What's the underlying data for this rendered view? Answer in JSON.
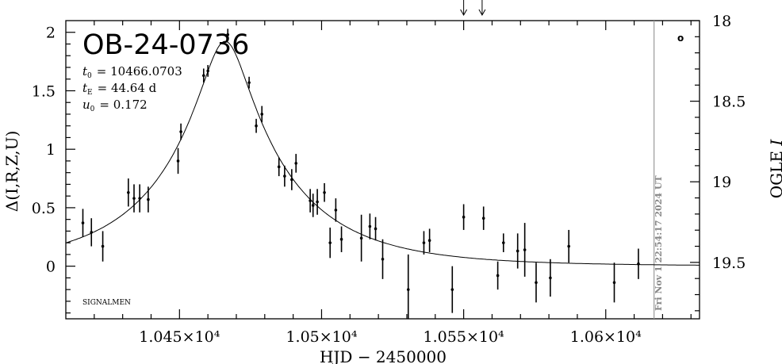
{
  "chart_data": {
    "type": "scatter",
    "title": "OB-24-0736",
    "params": {
      "t0_label": "t",
      "t0_sub": "0",
      "t0_value": "= 10466.0703",
      "tE_label": "t",
      "tE_sub": "E",
      "tE_value": "= 44.64 d",
      "u0_label": "u",
      "u0_sub": "0",
      "u0_value": "= 0.172"
    },
    "xlabel": "HJD − 2450000",
    "ylabel_left": "Δ(I,R,Z,U)",
    "ylabel_right": "OGLE I",
    "ylabel_right_prefix": "OGLE ",
    "ylabel_right_var": "I",
    "footer_tag": "SIGNALMEN",
    "corner_mark": "o",
    "timestamp": "Fri Nov  1 22:54:17 2024 UT",
    "xlim": [
      10410,
      10633
    ],
    "ylim_left": [
      -0.45,
      2.1
    ],
    "ylim_right": [
      18.0,
      19.85
    ],
    "x_ticks": [
      {
        "value": 10450,
        "label": "1.045×10⁴"
      },
      {
        "value": 10500,
        "label": "1.05×10⁴"
      },
      {
        "value": 10550,
        "label": "1.055×10⁴"
      },
      {
        "value": 10600,
        "label": "1.06×10⁴"
      }
    ],
    "y_left_ticks": [
      {
        "value": 0,
        "label": "0"
      },
      {
        "value": 0.5,
        "label": "0.5"
      },
      {
        "value": 1,
        "label": "1"
      },
      {
        "value": 1.5,
        "label": "1.5"
      },
      {
        "value": 2,
        "label": "2"
      }
    ],
    "y_right_ticks": [
      {
        "value": 18,
        "label": "18"
      },
      {
        "value": 18.5,
        "label": "18.5"
      },
      {
        "value": 19,
        "label": "19"
      },
      {
        "value": 19.5,
        "label": "19.5"
      }
    ],
    "now_line_x": 10617,
    "arrow_markers_x": [
      10550,
      10556.5
    ],
    "model": {
      "t0": 10466.07,
      "tE": 44.64,
      "u0": 0.172,
      "fbase_delta": 0.0
    },
    "points": [
      {
        "x": 10416.0,
        "y": 0.37,
        "err": 0.12
      },
      {
        "x": 10419.0,
        "y": 0.29,
        "err": 0.12
      },
      {
        "x": 10423.0,
        "y": 0.17,
        "err": 0.13
      },
      {
        "x": 10432.0,
        "y": 0.63,
        "err": 0.12
      },
      {
        "x": 10434.0,
        "y": 0.58,
        "err": 0.12
      },
      {
        "x": 10436.0,
        "y": 0.58,
        "err": 0.12
      },
      {
        "x": 10439.0,
        "y": 0.57,
        "err": 0.11
      },
      {
        "x": 10449.5,
        "y": 0.9,
        "err": 0.11
      },
      {
        "x": 10450.5,
        "y": 1.15,
        "err": 0.07
      },
      {
        "x": 10458.5,
        "y": 1.63,
        "err": 0.06
      },
      {
        "x": 10460.0,
        "y": 1.67,
        "err": 0.05
      },
      {
        "x": 10467.0,
        "y": 1.98,
        "err": 0.05
      },
      {
        "x": 10474.5,
        "y": 1.57,
        "err": 0.05
      },
      {
        "x": 10477.0,
        "y": 1.2,
        "err": 0.06
      },
      {
        "x": 10479.0,
        "y": 1.3,
        "err": 0.07
      },
      {
        "x": 10485.0,
        "y": 0.85,
        "err": 0.08
      },
      {
        "x": 10487.0,
        "y": 0.77,
        "err": 0.09
      },
      {
        "x": 10489.5,
        "y": 0.74,
        "err": 0.09
      },
      {
        "x": 10491.0,
        "y": 0.88,
        "err": 0.08
      },
      {
        "x": 10496.0,
        "y": 0.56,
        "err": 0.1
      },
      {
        "x": 10497.0,
        "y": 0.52,
        "err": 0.1
      },
      {
        "x": 10498.5,
        "y": 0.55,
        "err": 0.11
      },
      {
        "x": 10501.0,
        "y": 0.63,
        "err": 0.08
      },
      {
        "x": 10503.0,
        "y": 0.2,
        "err": 0.13
      },
      {
        "x": 10505.0,
        "y": 0.48,
        "err": 0.1
      },
      {
        "x": 10507.0,
        "y": 0.23,
        "err": 0.11
      },
      {
        "x": 10514.0,
        "y": 0.24,
        "err": 0.2
      },
      {
        "x": 10517.0,
        "y": 0.34,
        "err": 0.11
      },
      {
        "x": 10519.0,
        "y": 0.32,
        "err": 0.1
      },
      {
        "x": 10521.5,
        "y": 0.06,
        "err": 0.17
      },
      {
        "x": 10530.5,
        "y": -0.2,
        "err": 0.3
      },
      {
        "x": 10536.0,
        "y": 0.2,
        "err": 0.1
      },
      {
        "x": 10538.0,
        "y": 0.22,
        "err": 0.1
      },
      {
        "x": 10546.0,
        "y": -0.2,
        "err": 0.2
      },
      {
        "x": 10550.0,
        "y": 0.42,
        "err": 0.11
      },
      {
        "x": 10557.0,
        "y": 0.41,
        "err": 0.1
      },
      {
        "x": 10562.0,
        "y": -0.08,
        "err": 0.12
      },
      {
        "x": 10564.0,
        "y": 0.2,
        "err": 0.08
      },
      {
        "x": 10569.0,
        "y": 0.13,
        "err": 0.15
      },
      {
        "x": 10571.5,
        "y": 0.14,
        "err": 0.23
      },
      {
        "x": 10575.5,
        "y": -0.14,
        "err": 0.17
      },
      {
        "x": 10580.5,
        "y": -0.1,
        "err": 0.16
      },
      {
        "x": 10587.0,
        "y": 0.17,
        "err": 0.14
      },
      {
        "x": 10603.0,
        "y": -0.14,
        "err": 0.17
      },
      {
        "x": 10611.5,
        "y": 0.02,
        "err": 0.13
      }
    ]
  }
}
